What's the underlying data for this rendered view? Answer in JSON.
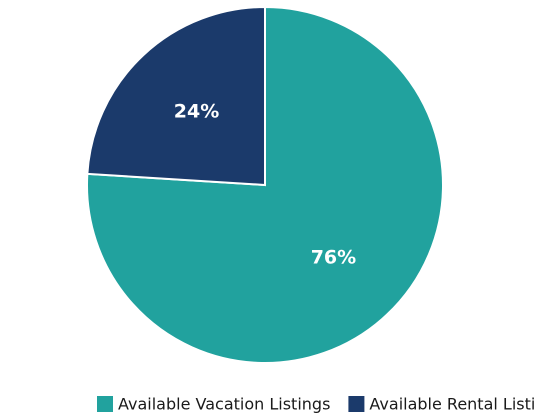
{
  "chart_data": {
    "type": "pie",
    "categories": [
      "Available Vacation Listings",
      "Available Rental Listings"
    ],
    "values": [
      76,
      24
    ],
    "value_labels": [
      "76%",
      "24%"
    ],
    "colors": [
      "#21a29e",
      "#1b3a6b"
    ],
    "legend": "bottom"
  }
}
